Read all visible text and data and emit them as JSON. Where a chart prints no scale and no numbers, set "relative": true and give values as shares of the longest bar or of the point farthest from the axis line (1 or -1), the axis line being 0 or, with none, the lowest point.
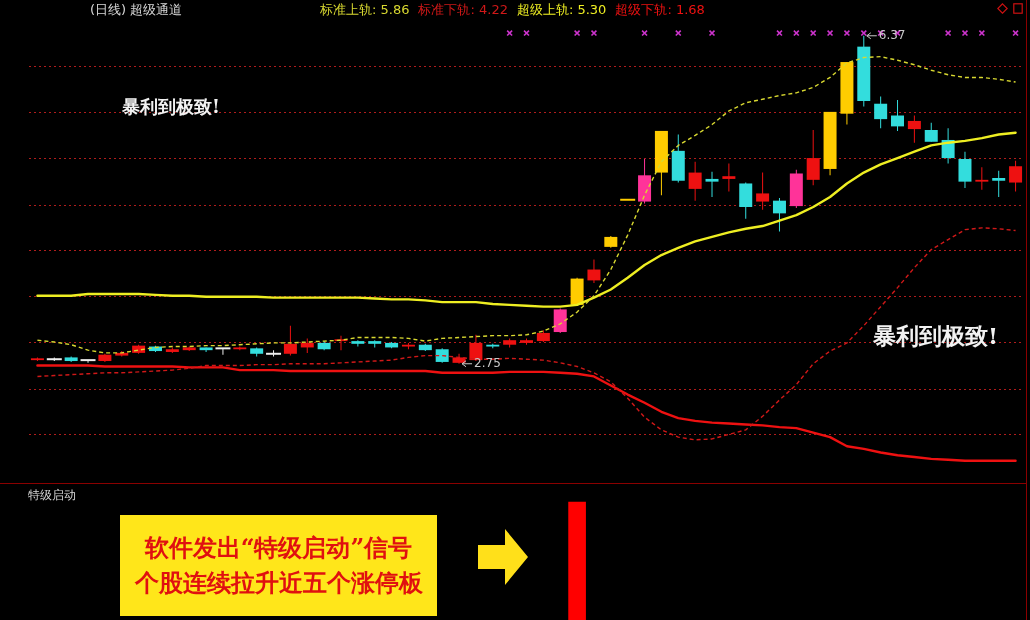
{
  "chart_data": [
    {
      "type": "candlestick",
      "title": "(日线) 超级通道",
      "categories": [
        null,
        null,
        null,
        null,
        null,
        null,
        null,
        null,
        null,
        null,
        null,
        null,
        null,
        null,
        null,
        null,
        null,
        null,
        null,
        null,
        null,
        null,
        null,
        null,
        null,
        null,
        null,
        null,
        null,
        null,
        null,
        null,
        null,
        null,
        null,
        null,
        null,
        null,
        null,
        null,
        null,
        null,
        null,
        null,
        null,
        null,
        null,
        null,
        null,
        null,
        null,
        null,
        null,
        null,
        null,
        null,
        null,
        null,
        null
      ],
      "ohlc": [
        [
          2.79,
          2.82,
          2.78,
          2.81
        ],
        [
          2.8,
          2.82,
          2.78,
          2.8
        ],
        [
          2.82,
          2.83,
          2.77,
          2.78
        ],
        [
          2.79,
          2.79,
          2.76,
          2.79
        ],
        [
          2.78,
          2.86,
          2.77,
          2.85
        ],
        [
          2.84,
          2.89,
          2.83,
          2.87
        ],
        [
          2.87,
          2.96,
          2.86,
          2.95
        ],
        [
          2.94,
          2.95,
          2.88,
          2.89
        ],
        [
          2.88,
          2.93,
          2.87,
          2.91
        ],
        [
          2.9,
          2.94,
          2.89,
          2.93
        ],
        [
          2.93,
          2.93,
          2.88,
          2.9
        ],
        [
          2.92,
          2.92,
          2.85,
          2.92
        ],
        [
          2.91,
          2.94,
          2.9,
          2.93
        ],
        [
          2.92,
          2.93,
          2.83,
          2.86
        ],
        [
          2.86,
          2.9,
          2.83,
          2.86
        ],
        [
          2.86,
          3.17,
          2.84,
          2.97
        ],
        [
          2.93,
          3.03,
          2.87,
          2.98
        ],
        [
          2.98,
          3.0,
          2.9,
          2.91
        ],
        [
          3.0,
          3.06,
          2.9,
          3.02
        ],
        [
          3.0,
          3.01,
          2.94,
          2.97
        ],
        [
          3.0,
          3.01,
          2.93,
          2.97
        ],
        [
          2.98,
          2.99,
          2.92,
          2.93
        ],
        [
          2.94,
          2.98,
          2.91,
          2.96
        ],
        [
          2.96,
          2.97,
          2.89,
          2.9
        ],
        [
          2.91,
          2.92,
          2.76,
          2.77
        ],
        [
          2.76,
          2.86,
          2.75,
          2.82
        ],
        [
          2.79,
          3.07,
          2.78,
          2.98
        ],
        [
          2.96,
          2.97,
          2.92,
          2.94
        ],
        [
          2.96,
          3.03,
          2.93,
          3.01
        ],
        [
          2.98,
          3.03,
          2.96,
          3.01
        ],
        [
          3.0,
          3.12,
          2.99,
          3.09
        ],
        [
          3.1,
          3.36,
          3.09,
          3.35
        ],
        [
          3.4,
          3.7,
          3.39,
          3.69
        ],
        [
          3.67,
          3.9,
          3.64,
          3.79
        ],
        [
          4.04,
          4.16,
          4.03,
          4.15
        ],
        [
          4.56,
          4.56,
          4.56,
          4.56
        ],
        [
          4.54,
          5.01,
          4.52,
          4.83
        ],
        [
          4.86,
          5.32,
          4.61,
          5.32
        ],
        [
          5.1,
          5.28,
          4.75,
          4.77
        ],
        [
          4.68,
          4.98,
          4.55,
          4.86
        ],
        [
          4.79,
          4.87,
          4.59,
          4.76
        ],
        [
          4.79,
          4.96,
          4.65,
          4.82
        ],
        [
          4.74,
          4.75,
          4.35,
          4.48
        ],
        [
          4.54,
          4.86,
          4.45,
          4.63
        ],
        [
          4.55,
          4.58,
          4.21,
          4.41
        ],
        [
          4.49,
          4.89,
          4.47,
          4.85
        ],
        [
          4.78,
          5.33,
          4.72,
          5.02
        ],
        [
          4.9,
          5.53,
          4.83,
          5.53
        ],
        [
          5.51,
          6.08,
          5.39,
          6.08
        ],
        [
          6.25,
          6.37,
          5.59,
          5.65
        ],
        [
          5.62,
          5.7,
          5.35,
          5.45
        ],
        [
          5.49,
          5.66,
          5.32,
          5.37
        ],
        [
          5.34,
          5.49,
          5.19,
          5.43
        ],
        [
          5.33,
          5.41,
          5.2,
          5.2
        ],
        [
          5.22,
          5.35,
          4.96,
          5.02
        ],
        [
          5.01,
          5.09,
          4.69,
          4.76
        ],
        [
          4.76,
          4.92,
          4.67,
          4.78
        ],
        [
          4.8,
          4.88,
          4.59,
          4.77
        ],
        [
          4.75,
          4.99,
          4.65,
          4.93
        ]
      ],
      "colors": [
        "#ee1111",
        "#eeeeee",
        "#33dddd",
        "#eeeeee",
        "#ee1111",
        "#ee1111",
        "#ee1111",
        "#33dddd",
        "#ee1111",
        "#ee1111",
        "#33dddd",
        "#eeeeee",
        "#ee1111",
        "#33dddd",
        "#eeeeee",
        "#ee1111",
        "#ee1111",
        "#33dddd",
        "#ee1111",
        "#33dddd",
        "#33dddd",
        "#33dddd",
        "#ee1111",
        "#33dddd",
        "#33dddd",
        "#ee1111",
        "#ee1111",
        "#33dddd",
        "#ee1111",
        "#ee1111",
        "#ee1111",
        "#ff3399",
        "#ffcc00",
        "#ee1111",
        "#ffcc00",
        "#ffcc00",
        "#ff3399",
        "#ffcc00",
        "#33dddd",
        "#ee1111",
        "#33dddd",
        "#ee1111",
        "#33dddd",
        "#ee1111",
        "#33dddd",
        "#ff3399",
        "#ee1111",
        "#ffcc00",
        "#ffcc00",
        "#33dddd",
        "#33dddd",
        "#33dddd",
        "#ee1111",
        "#33dddd",
        "#33dddd",
        "#33dddd",
        "#ee1111",
        "#33dddd",
        "#ee1111"
      ],
      "series": [
        {
          "name": "标准上轨: 5.86",
          "type": "line",
          "color": "#d8d830",
          "line_style": "dashed",
          "values": [
            3.01,
            2.99,
            2.96,
            2.9,
            2.87,
            2.87,
            2.9,
            2.93,
            2.94,
            2.94,
            2.95,
            2.95,
            2.96,
            2.97,
            2.98,
            2.98,
            2.99,
            3.0,
            3.01,
            3.04,
            3.04,
            3.04,
            3.03,
            3.0,
            3.03,
            3.04,
            3.05,
            3.06,
            3.06,
            3.07,
            3.11,
            3.19,
            3.32,
            3.5,
            3.79,
            4.17,
            4.61,
            4.98,
            5.16,
            5.27,
            5.39,
            5.54,
            5.63,
            5.67,
            5.71,
            5.74,
            5.8,
            5.91,
            6.07,
            6.13,
            6.14,
            6.1,
            6.05,
            5.99,
            5.94,
            5.91,
            5.91,
            5.89,
            5.86
          ]
        },
        {
          "name": "标准下轨: 4.22",
          "type": "line",
          "color": "#d01818",
          "line_style": "dashed",
          "values": [
            2.61,
            2.62,
            2.63,
            2.64,
            2.65,
            2.65,
            2.66,
            2.67,
            2.68,
            2.7,
            2.73,
            2.73,
            2.73,
            2.74,
            2.74,
            2.75,
            2.75,
            2.75,
            2.76,
            2.77,
            2.78,
            2.79,
            2.82,
            2.84,
            2.84,
            2.82,
            2.8,
            2.8,
            2.81,
            2.8,
            2.79,
            2.76,
            2.72,
            2.65,
            2.55,
            2.37,
            2.16,
            2.02,
            1.94,
            1.91,
            1.92,
            1.97,
            2.02,
            2.17,
            2.35,
            2.52,
            2.75,
            2.89,
            2.98,
            3.17,
            3.38,
            3.59,
            3.81,
            4.01,
            4.12,
            4.23,
            4.25,
            4.24,
            4.22
          ]
        },
        {
          "name": "超级上轨: 5.30",
          "type": "line",
          "color": "#eeee22",
          "line_style": "solid",
          "values": [
            3.5,
            3.5,
            3.5,
            3.52,
            3.52,
            3.52,
            3.52,
            3.51,
            3.5,
            3.5,
            3.49,
            3.49,
            3.49,
            3.49,
            3.48,
            3.48,
            3.48,
            3.48,
            3.48,
            3.48,
            3.47,
            3.46,
            3.46,
            3.45,
            3.43,
            3.43,
            3.43,
            3.41,
            3.4,
            3.39,
            3.38,
            3.38,
            3.4,
            3.48,
            3.57,
            3.7,
            3.84,
            3.95,
            4.03,
            4.1,
            4.15,
            4.2,
            4.24,
            4.27,
            4.33,
            4.39,
            4.48,
            4.59,
            4.74,
            4.86,
            4.95,
            5.02,
            5.09,
            5.16,
            5.19,
            5.21,
            5.24,
            5.28,
            5.3
          ]
        },
        {
          "name": "超级下轨: 1.68",
          "type": "line",
          "color": "#ee1111",
          "line_style": "solid",
          "values": [
            2.73,
            2.73,
            2.73,
            2.73,
            2.72,
            2.72,
            2.72,
            2.72,
            2.72,
            2.71,
            2.71,
            2.71,
            2.68,
            2.68,
            2.68,
            2.67,
            2.67,
            2.67,
            2.67,
            2.67,
            2.67,
            2.67,
            2.67,
            2.67,
            2.65,
            2.65,
            2.65,
            2.65,
            2.66,
            2.66,
            2.66,
            2.65,
            2.64,
            2.61,
            2.51,
            2.41,
            2.32,
            2.22,
            2.15,
            2.12,
            2.1,
            2.09,
            2.08,
            2.07,
            2.05,
            2.04,
            1.99,
            1.94,
            1.84,
            1.81,
            1.77,
            1.74,
            1.72,
            1.7,
            1.69,
            1.68,
            1.68,
            1.68,
            1.68
          ]
        },
        {
          "type": "scatter",
          "color": "#cc33cc",
          "marker": "cross",
          "values": [
            null,
            null,
            null,
            null,
            null,
            null,
            null,
            null,
            null,
            null,
            null,
            null,
            null,
            null,
            null,
            null,
            null,
            null,
            null,
            null,
            null,
            null,
            null,
            null,
            null,
            null,
            null,
            null,
            6.4,
            6.4,
            null,
            null,
            6.4,
            6.4,
            null,
            null,
            6.4,
            null,
            6.4,
            null,
            6.4,
            null,
            null,
            null,
            6.4,
            6.4,
            6.4,
            6.4,
            6.4,
            6.4,
            6.4,
            6.4,
            null,
            null,
            6.4,
            6.4,
            6.4,
            null,
            6.4
          ]
        }
      ],
      "yticks": [
        {
          "value": 6.03,
          "label": null
        },
        {
          "value": 5.52,
          "label": null
        },
        {
          "value": 5.01,
          "label": null
        },
        {
          "value": 4.5,
          "label": null
        },
        {
          "value": 4.0,
          "label": null
        },
        {
          "value": 3.49,
          "label": null
        },
        {
          "value": 2.98,
          "label": null
        },
        {
          "value": 2.47,
          "label": null
        },
        {
          "value": 1.97,
          "label": null
        }
      ],
      "grid": "y",
      "legend": "top",
      "tick_labels": false,
      "annotations": [
        "暴利到极致!",
        "暴利到极致!",
        "6.37",
        "2.75"
      ]
    },
    {
      "type": "bar",
      "title": "特级启动",
      "categories": [
        null,
        null,
        null,
        null,
        null,
        null,
        null,
        null,
        null,
        null,
        null,
        null,
        null,
        null,
        null,
        null,
        null,
        null,
        null,
        null,
        null,
        null,
        null,
        null,
        null,
        null,
        null,
        null,
        null,
        null,
        null,
        null,
        null,
        null,
        null,
        null,
        null,
        null,
        null,
        null,
        null,
        null,
        null,
        null,
        null,
        null,
        null,
        null,
        null,
        null,
        null,
        null,
        null,
        null,
        null,
        null,
        null,
        null,
        null
      ],
      "values": [
        null,
        null,
        null,
        null,
        null,
        null,
        null,
        null,
        null,
        null,
        null,
        null,
        null,
        null,
        null,
        null,
        null,
        null,
        null,
        null,
        null,
        null,
        null,
        null,
        null,
        null,
        null,
        null,
        null,
        null,
        null,
        null,
        1,
        null,
        null,
        null,
        null,
        null,
        null,
        null,
        null,
        null,
        null,
        null,
        null,
        null,
        null,
        null,
        null,
        null,
        null,
        null,
        null,
        null,
        null,
        null,
        null,
        null,
        null
      ],
      "color": "#ff0000",
      "relative": true,
      "tick_labels": false,
      "annotations": [
        "软件发出“特级启动”信号",
        "个股连续拉升近五个涨停板"
      ]
    }
  ]
}
